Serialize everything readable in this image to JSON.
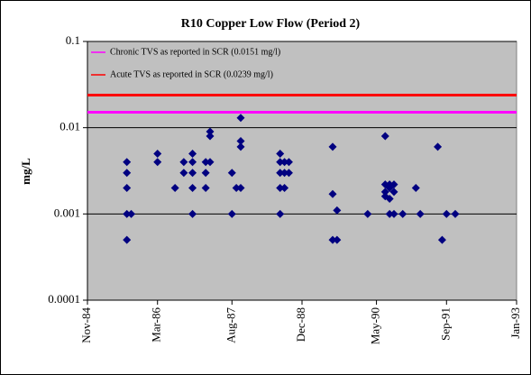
{
  "chart_data": {
    "type": "scatter",
    "title": "R10 Copper Low Flow (Period 2)",
    "y_label": "mg/L",
    "color": "#000080",
    "log_y": true,
    "grid": true,
    "legend": "upper left",
    "x": [
      "1985-08",
      "1985-08",
      "1985-08",
      "1985-08",
      "1985-08",
      "1985-09",
      "1986-03",
      "1986-03",
      "1986-07",
      "1986-09",
      "1986-09",
      "1986-11",
      "1986-11",
      "1986-11",
      "1986-11",
      "1986-11",
      "1987-02",
      "1987-02",
      "1987-02",
      "1987-03",
      "1987-03",
      "1987-03",
      "1987-08",
      "1987-08",
      "1987-09",
      "1987-10",
      "1987-10",
      "1987-10",
      "1987-10",
      "1988-07",
      "1988-07",
      "1988-07",
      "1988-07",
      "1988-07",
      "1988-08",
      "1988-08",
      "1988-08",
      "1988-09",
      "1988-09",
      "1989-07",
      "1989-07",
      "1989-07",
      "1989-08",
      "1989-08",
      "1990-03",
      "1990-07",
      "1990-07",
      "1990-07",
      "1990-07",
      "1990-08",
      "1990-08",
      "1990-08",
      "1990-08",
      "1990-09",
      "1990-09",
      "1990-09",
      "1990-11",
      "1991-02",
      "1991-03",
      "1991-07",
      "1991-08",
      "1991-09",
      "1991-11"
    ],
    "values": [
      0.004,
      0.003,
      0.002,
      0.001,
      0.0005,
      0.001,
      0.005,
      0.004,
      0.002,
      0.004,
      0.003,
      0.004,
      0.005,
      0.003,
      0.002,
      0.001,
      0.004,
      0.003,
      0.002,
      0.009,
      0.008,
      0.004,
      0.003,
      0.001,
      0.002,
      0.006,
      0.007,
      0.013,
      0.002,
      0.005,
      0.004,
      0.003,
      0.002,
      0.001,
      0.003,
      0.004,
      0.002,
      0.003,
      0.004,
      0.006,
      0.0017,
      0.0005,
      0.0011,
      0.0005,
      0.001,
      0.008,
      0.0022,
      0.0018,
      0.0016,
      0.0022,
      0.002,
      0.0015,
      0.001,
      0.0022,
      0.0018,
      0.001,
      0.001,
      0.002,
      0.001,
      0.006,
      0.0005,
      0.001,
      0.001
    ],
    "reference_lines": [
      {
        "name": "Chronic TVS as reported in SCR (0.0151 mg/l)",
        "value": 0.0151,
        "color": "#ff00ff"
      },
      {
        "name": "Acute TVS as reported in SCR (0.0239 mg/l)",
        "value": 0.0239,
        "color": "#ff0000"
      }
    ],
    "xlim": [
      "1984-11",
      "1993-01"
    ],
    "xticks": [
      {
        "value": "1984-11",
        "label": "Nov-84"
      },
      {
        "value": "1986-03",
        "label": "Mar-86"
      },
      {
        "value": "1987-08",
        "label": "Aug-87"
      },
      {
        "value": "1988-12",
        "label": "Dec-88"
      },
      {
        "value": "1990-05",
        "label": "May-90"
      },
      {
        "value": "1991-09",
        "label": "Sep-91"
      },
      {
        "value": "1993-01",
        "label": "Jan-93"
      }
    ],
    "ylim": [
      0.0001,
      0.1
    ],
    "yticks": [
      0.0001,
      0.001,
      0.01,
      0.1
    ]
  }
}
